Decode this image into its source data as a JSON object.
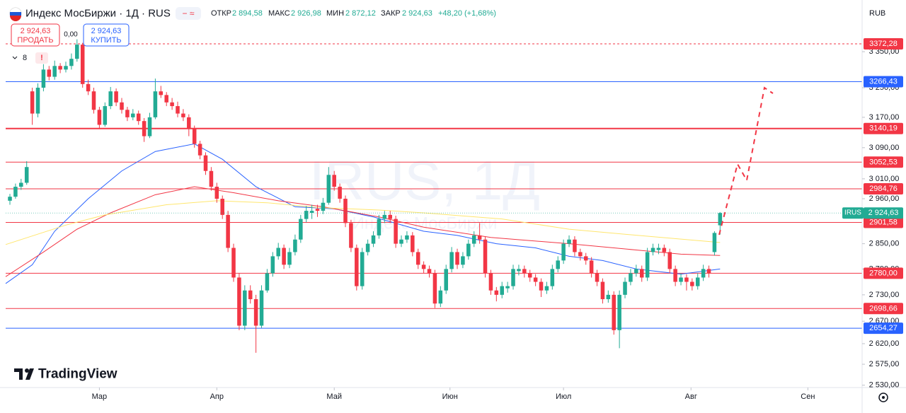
{
  "header": {
    "title": "Индекс МосБиржи · 1Д · RUS",
    "open_label": "ОТКР",
    "open": "2 894,58",
    "high_label": "МАКС",
    "high": "2 926,98",
    "low_label": "МИН",
    "low": "2 872,12",
    "close_label": "ЗАКР",
    "close": "2 924,63",
    "change": "+48,20 (+1,68%)",
    "currency": "RUB"
  },
  "trade": {
    "sell_price": "2 924,63",
    "sell": "ПРОДАТЬ",
    "spread": "0,00",
    "buy_price": "2 924,63",
    "buy": "КУПИТЬ",
    "indicators": "8"
  },
  "watermark": {
    "symbol": "IRUS, 1Д",
    "name": "Индекс МосБиржи"
  },
  "logo": "TradingView",
  "chart_data": {
    "type": "candlestick",
    "yscale": "log",
    "up_color": "#22ab94",
    "down_color": "#f23645",
    "categories": [
      null,
      null,
      null,
      null,
      null,
      null,
      null,
      null,
      null,
      null,
      null,
      null,
      null,
      null,
      null,
      null,
      null,
      null,
      null,
      null,
      null,
      null,
      null,
      null,
      null,
      null,
      null,
      null,
      null,
      null,
      null,
      null,
      null,
      null,
      null,
      null,
      null,
      null,
      null,
      null,
      null,
      null,
      null,
      null,
      null,
      null,
      null,
      null,
      null,
      null,
      null,
      null,
      null,
      null,
      null,
      null,
      null,
      null,
      null,
      null,
      null,
      null,
      null,
      null,
      null,
      null,
      null,
      null,
      null,
      null,
      null,
      null,
      null,
      null,
      null,
      null,
      null,
      null,
      null,
      null,
      null,
      null,
      null,
      null,
      null,
      null,
      null,
      null,
      null,
      null,
      null,
      null,
      null,
      null,
      null,
      null,
      null,
      null,
      null,
      null,
      null,
      null,
      null,
      null,
      null,
      null,
      null,
      null,
      null,
      null,
      null,
      null,
      null,
      null,
      null,
      null,
      null,
      null,
      null,
      null,
      null,
      null,
      null,
      null,
      null,
      null,
      null,
      null
    ],
    "candles": [
      [
        2955,
        2972,
        2945,
        2965
      ],
      [
        2965,
        2998,
        2960,
        2990
      ],
      [
        2990,
        3010,
        2982,
        3000
      ],
      [
        3000,
        3055,
        2995,
        3040
      ],
      [
        3240,
        3250,
        3150,
        3180
      ],
      [
        3180,
        3262,
        3170,
        3250
      ],
      [
        3250,
        3315,
        3240,
        3300
      ],
      [
        3300,
        3310,
        3270,
        3280
      ],
      [
        3280,
        3325,
        3272,
        3310
      ],
      [
        3310,
        3318,
        3290,
        3300
      ],
      [
        3300,
        3322,
        3292,
        3310
      ],
      [
        3310,
        3345,
        3300,
        3330
      ],
      [
        3330,
        3385,
        3322,
        3370
      ],
      [
        3370,
        3375,
        3250,
        3260
      ],
      [
        3260,
        3272,
        3230,
        3240
      ],
      [
        3240,
        3250,
        3180,
        3190
      ],
      [
        3190,
        3198,
        3140,
        3150
      ],
      [
        3150,
        3210,
        3145,
        3200
      ],
      [
        3200,
        3252,
        3192,
        3240
      ],
      [
        3240,
        3248,
        3200,
        3210
      ],
      [
        3210,
        3222,
        3180,
        3190
      ],
      [
        3190,
        3198,
        3160,
        3170
      ],
      [
        3170,
        3192,
        3162,
        3180
      ],
      [
        3180,
        3188,
        3150,
        3160
      ],
      [
        3160,
        3168,
        3105,
        3120
      ],
      [
        3120,
        3182,
        3115,
        3170
      ],
      [
        3170,
        3275,
        3165,
        3240
      ],
      [
        3240,
        3255,
        3222,
        3230
      ],
      [
        3230,
        3238,
        3200,
        3210
      ],
      [
        3210,
        3222,
        3190,
        3200
      ],
      [
        3200,
        3212,
        3170,
        3180
      ],
      [
        3180,
        3192,
        3160,
        3170
      ],
      [
        3170,
        3178,
        3120,
        3140
      ],
      [
        3140,
        3148,
        3090,
        3100
      ],
      [
        3100,
        3108,
        3060,
        3070
      ],
      [
        3070,
        3078,
        3020,
        3030
      ],
      [
        3030,
        3040,
        2980,
        2990
      ],
      [
        2990,
        3000,
        2950,
        2960
      ],
      [
        2960,
        2968,
        2910,
        2920
      ],
      [
        2920,
        2930,
        2830,
        2840
      ],
      [
        2840,
        2850,
        2760,
        2770
      ],
      [
        2770,
        2780,
        2650,
        2660
      ],
      [
        2660,
        2752,
        2650,
        2740
      ],
      [
        2740,
        2752,
        2710,
        2720
      ],
      [
        2720,
        2730,
        2600,
        2660
      ],
      [
        2660,
        2752,
        2655,
        2740
      ],
      [
        2740,
        2790,
        2735,
        2780
      ],
      [
        2780,
        2830,
        2772,
        2820
      ],
      [
        2820,
        2852,
        2812,
        2840
      ],
      [
        2840,
        2848,
        2790,
        2800
      ],
      [
        2800,
        2840,
        2792,
        2830
      ],
      [
        2830,
        2872,
        2822,
        2860
      ],
      [
        2860,
        2920,
        2852,
        2910
      ],
      [
        2910,
        2942,
        2902,
        2930
      ],
      [
        2925,
        2945,
        2910,
        2930
      ],
      [
        2935,
        2945,
        2915,
        2930
      ],
      [
        2930,
        2962,
        2922,
        2950
      ],
      [
        2950,
        3040,
        2945,
        3020
      ],
      [
        3020,
        3030,
        2980,
        2990
      ],
      [
        2990,
        2998,
        2950,
        2960
      ],
      [
        2960,
        2968,
        2890,
        2900
      ],
      [
        2900,
        2908,
        2830,
        2840
      ],
      [
        2840,
        2848,
        2740,
        2750
      ],
      [
        2750,
        2840,
        2742,
        2830
      ],
      [
        2830,
        2860,
        2822,
        2850
      ],
      [
        2850,
        2880,
        2842,
        2870
      ],
      [
        2870,
        2920,
        2862,
        2910
      ],
      [
        2910,
        2930,
        2900,
        2920
      ],
      [
        2920,
        2930,
        2900,
        2910
      ],
      [
        2910,
        2918,
        2840,
        2850
      ],
      [
        2850,
        2870,
        2842,
        2860
      ],
      [
        2860,
        2880,
        2852,
        2870
      ],
      [
        2870,
        2878,
        2820,
        2830
      ],
      [
        2830,
        2838,
        2790,
        2800
      ],
      [
        2800,
        2808,
        2780,
        2790
      ],
      [
        2790,
        2798,
        2770,
        2780
      ],
      [
        2780,
        2788,
        2700,
        2710
      ],
      [
        2710,
        2750,
        2702,
        2740
      ],
      [
        2740,
        2800,
        2732,
        2790
      ],
      [
        2790,
        2842,
        2782,
        2830
      ],
      [
        2830,
        2838,
        2790,
        2800
      ],
      [
        2800,
        2830,
        2792,
        2820
      ],
      [
        2820,
        2860,
        2812,
        2850
      ],
      [
        2850,
        2880,
        2842,
        2870
      ],
      [
        2870,
        2900,
        2850,
        2860
      ],
      [
        2860,
        2868,
        2770,
        2780
      ],
      [
        2780,
        2788,
        2730,
        2740
      ],
      [
        2740,
        2748,
        2715,
        2730
      ],
      [
        2730,
        2760,
        2722,
        2750
      ],
      [
        2745,
        2760,
        2735,
        2750
      ],
      [
        2750,
        2800,
        2742,
        2790
      ],
      [
        2785,
        2800,
        2775,
        2790
      ],
      [
        2790,
        2798,
        2770,
        2780
      ],
      [
        2780,
        2788,
        2760,
        2770
      ],
      [
        2770,
        2778,
        2750,
        2760
      ],
      [
        2760,
        2768,
        2725,
        2740
      ],
      [
        2740,
        2760,
        2732,
        2750
      ],
      [
        2750,
        2800,
        2742,
        2790
      ],
      [
        2790,
        2820,
        2782,
        2810
      ],
      [
        2810,
        2860,
        2802,
        2850
      ],
      [
        2850,
        2870,
        2842,
        2860
      ],
      [
        2860,
        2868,
        2820,
        2830
      ],
      [
        2830,
        2838,
        2810,
        2820
      ],
      [
        2820,
        2828,
        2800,
        2810
      ],
      [
        2810,
        2818,
        2770,
        2780
      ],
      [
        2780,
        2788,
        2750,
        2760
      ],
      [
        2760,
        2768,
        2710,
        2720
      ],
      [
        2720,
        2740,
        2712,
        2730
      ],
      [
        2730,
        2738,
        2640,
        2650
      ],
      [
        2650,
        2740,
        2610,
        2730
      ],
      [
        2730,
        2770,
        2722,
        2760
      ],
      [
        2760,
        2790,
        2752,
        2780
      ],
      [
        2780,
        2800,
        2772,
        2790
      ],
      [
        2790,
        2798,
        2760,
        2770
      ],
      [
        2770,
        2840,
        2762,
        2830
      ],
      [
        2830,
        2850,
        2822,
        2840
      ],
      [
        2835,
        2850,
        2825,
        2840
      ],
      [
        2840,
        2848,
        2820,
        2830
      ],
      [
        2830,
        2838,
        2780,
        2790
      ],
      [
        2790,
        2798,
        2750,
        2760
      ],
      [
        2760,
        2780,
        2752,
        2770
      ],
      [
        2770,
        2778,
        2740,
        2760
      ],
      [
        2760,
        2768,
        2740,
        2750
      ],
      [
        2750,
        2780,
        2742,
        2770
      ],
      [
        2770,
        2800,
        2762,
        2790
      ],
      [
        2790,
        2798,
        2770,
        2780
      ],
      [
        2830,
        2880,
        2822,
        2876
      ],
      [
        2894.58,
        2926.98,
        2872.12,
        2924.63
      ]
    ],
    "lines": [
      {
        "color": "#2962ff",
        "x": [
          -0.76,
          4,
          8,
          14,
          20,
          26,
          33,
          38,
          44,
          51,
          58,
          65,
          74,
          80,
          87,
          94,
          100,
          106,
          112,
          120,
          127
        ],
        "values": [
          2756,
          2800,
          2880,
          2960,
          3030,
          3080,
          3100,
          3060,
          2990,
          2940,
          2935,
          2915,
          2880,
          2870,
          2850,
          2840,
          2820,
          2810,
          2790,
          2778,
          2790
        ]
      },
      {
        "color": "#f23645",
        "x": [
          -0.76,
          6,
          12,
          18,
          26,
          33,
          40,
          48,
          56,
          66,
          74,
          86,
          100,
          112,
          120,
          127
        ],
        "values": [
          2772,
          2830,
          2885,
          2925,
          2970,
          2990,
          2975,
          2955,
          2940,
          2915,
          2890,
          2865,
          2850,
          2835,
          2825,
          2822
        ]
      },
      {
        "color": "#ffe66e",
        "x": [
          -0.76,
          10,
          17,
          28,
          37,
          46,
          55,
          66,
          74,
          88,
          100,
          114,
          127
        ],
        "values": [
          2848,
          2895,
          2920,
          2945,
          2955,
          2950,
          2938,
          2932,
          2925,
          2910,
          2885,
          2868,
          2853
        ]
      }
    ],
    "levels": [
      {
        "value": 3372.28,
        "label": "3372,28",
        "color": "#f23645",
        "dashed": true
      },
      {
        "value": 3266.43,
        "label": "3266,43",
        "color": "#2962ff",
        "dashed": false
      },
      {
        "value": 3140.19,
        "label": "3140,19",
        "color": "#f23645",
        "dashed": false
      },
      {
        "value": 3052.53,
        "label": "3052,53",
        "color": "#f23645",
        "dashed": false
      },
      {
        "value": 2984.76,
        "label": "2984,76",
        "color": "#f23645",
        "dashed": false
      },
      {
        "value": 2901.58,
        "label": "2901,58",
        "color": "#f23645",
        "dashed": false
      },
      {
        "value": 2780.0,
        "label": "2780,00",
        "color": "#f23645",
        "dashed": false
      },
      {
        "value": 2698.66,
        "label": "2698,66",
        "color": "#f23645",
        "dashed": false
      },
      {
        "value": 2654.27,
        "label": "2654,27",
        "color": "#2962ff",
        "dashed": false
      }
    ],
    "last_tag": "IRUS",
    "last_label": "2 924,63",
    "xlim": [
      -0.76,
      152.4
    ],
    "xticks": [
      {
        "value": 16,
        "label": "Мар"
      },
      {
        "value": 37,
        "label": "Апр"
      },
      {
        "value": 58,
        "label": "Май"
      },
      {
        "value": 78.7,
        "label": "Июн"
      },
      {
        "value": 99,
        "label": "Июл"
      },
      {
        "value": 121.8,
        "label": "Авг"
      },
      {
        "value": 142.7,
        "label": "Сен"
      }
    ],
    "ylim": [
      2525,
      3499
    ],
    "yticks": [
      {
        "value": 3350,
        "label": "3 350,00"
      },
      {
        "value": 3250,
        "label": "3 250,00"
      },
      {
        "value": 3170,
        "label": "3 170,00"
      },
      {
        "value": 3090,
        "label": "3 090,00"
      },
      {
        "value": 3010,
        "label": "3 010,00"
      },
      {
        "value": 2960,
        "label": "2 960,00"
      },
      {
        "value": 2850,
        "label": "2 850,00"
      },
      {
        "value": 2790,
        "label": "2 790,00"
      },
      {
        "value": 2730,
        "label": "2 730,00"
      },
      {
        "value": 2670,
        "label": "2 670,00"
      },
      {
        "value": 2620,
        "label": "2 620,00"
      },
      {
        "value": 2575,
        "label": "2 575,00"
      },
      {
        "value": 2530,
        "label": "2 530,00"
      }
    ]
  }
}
